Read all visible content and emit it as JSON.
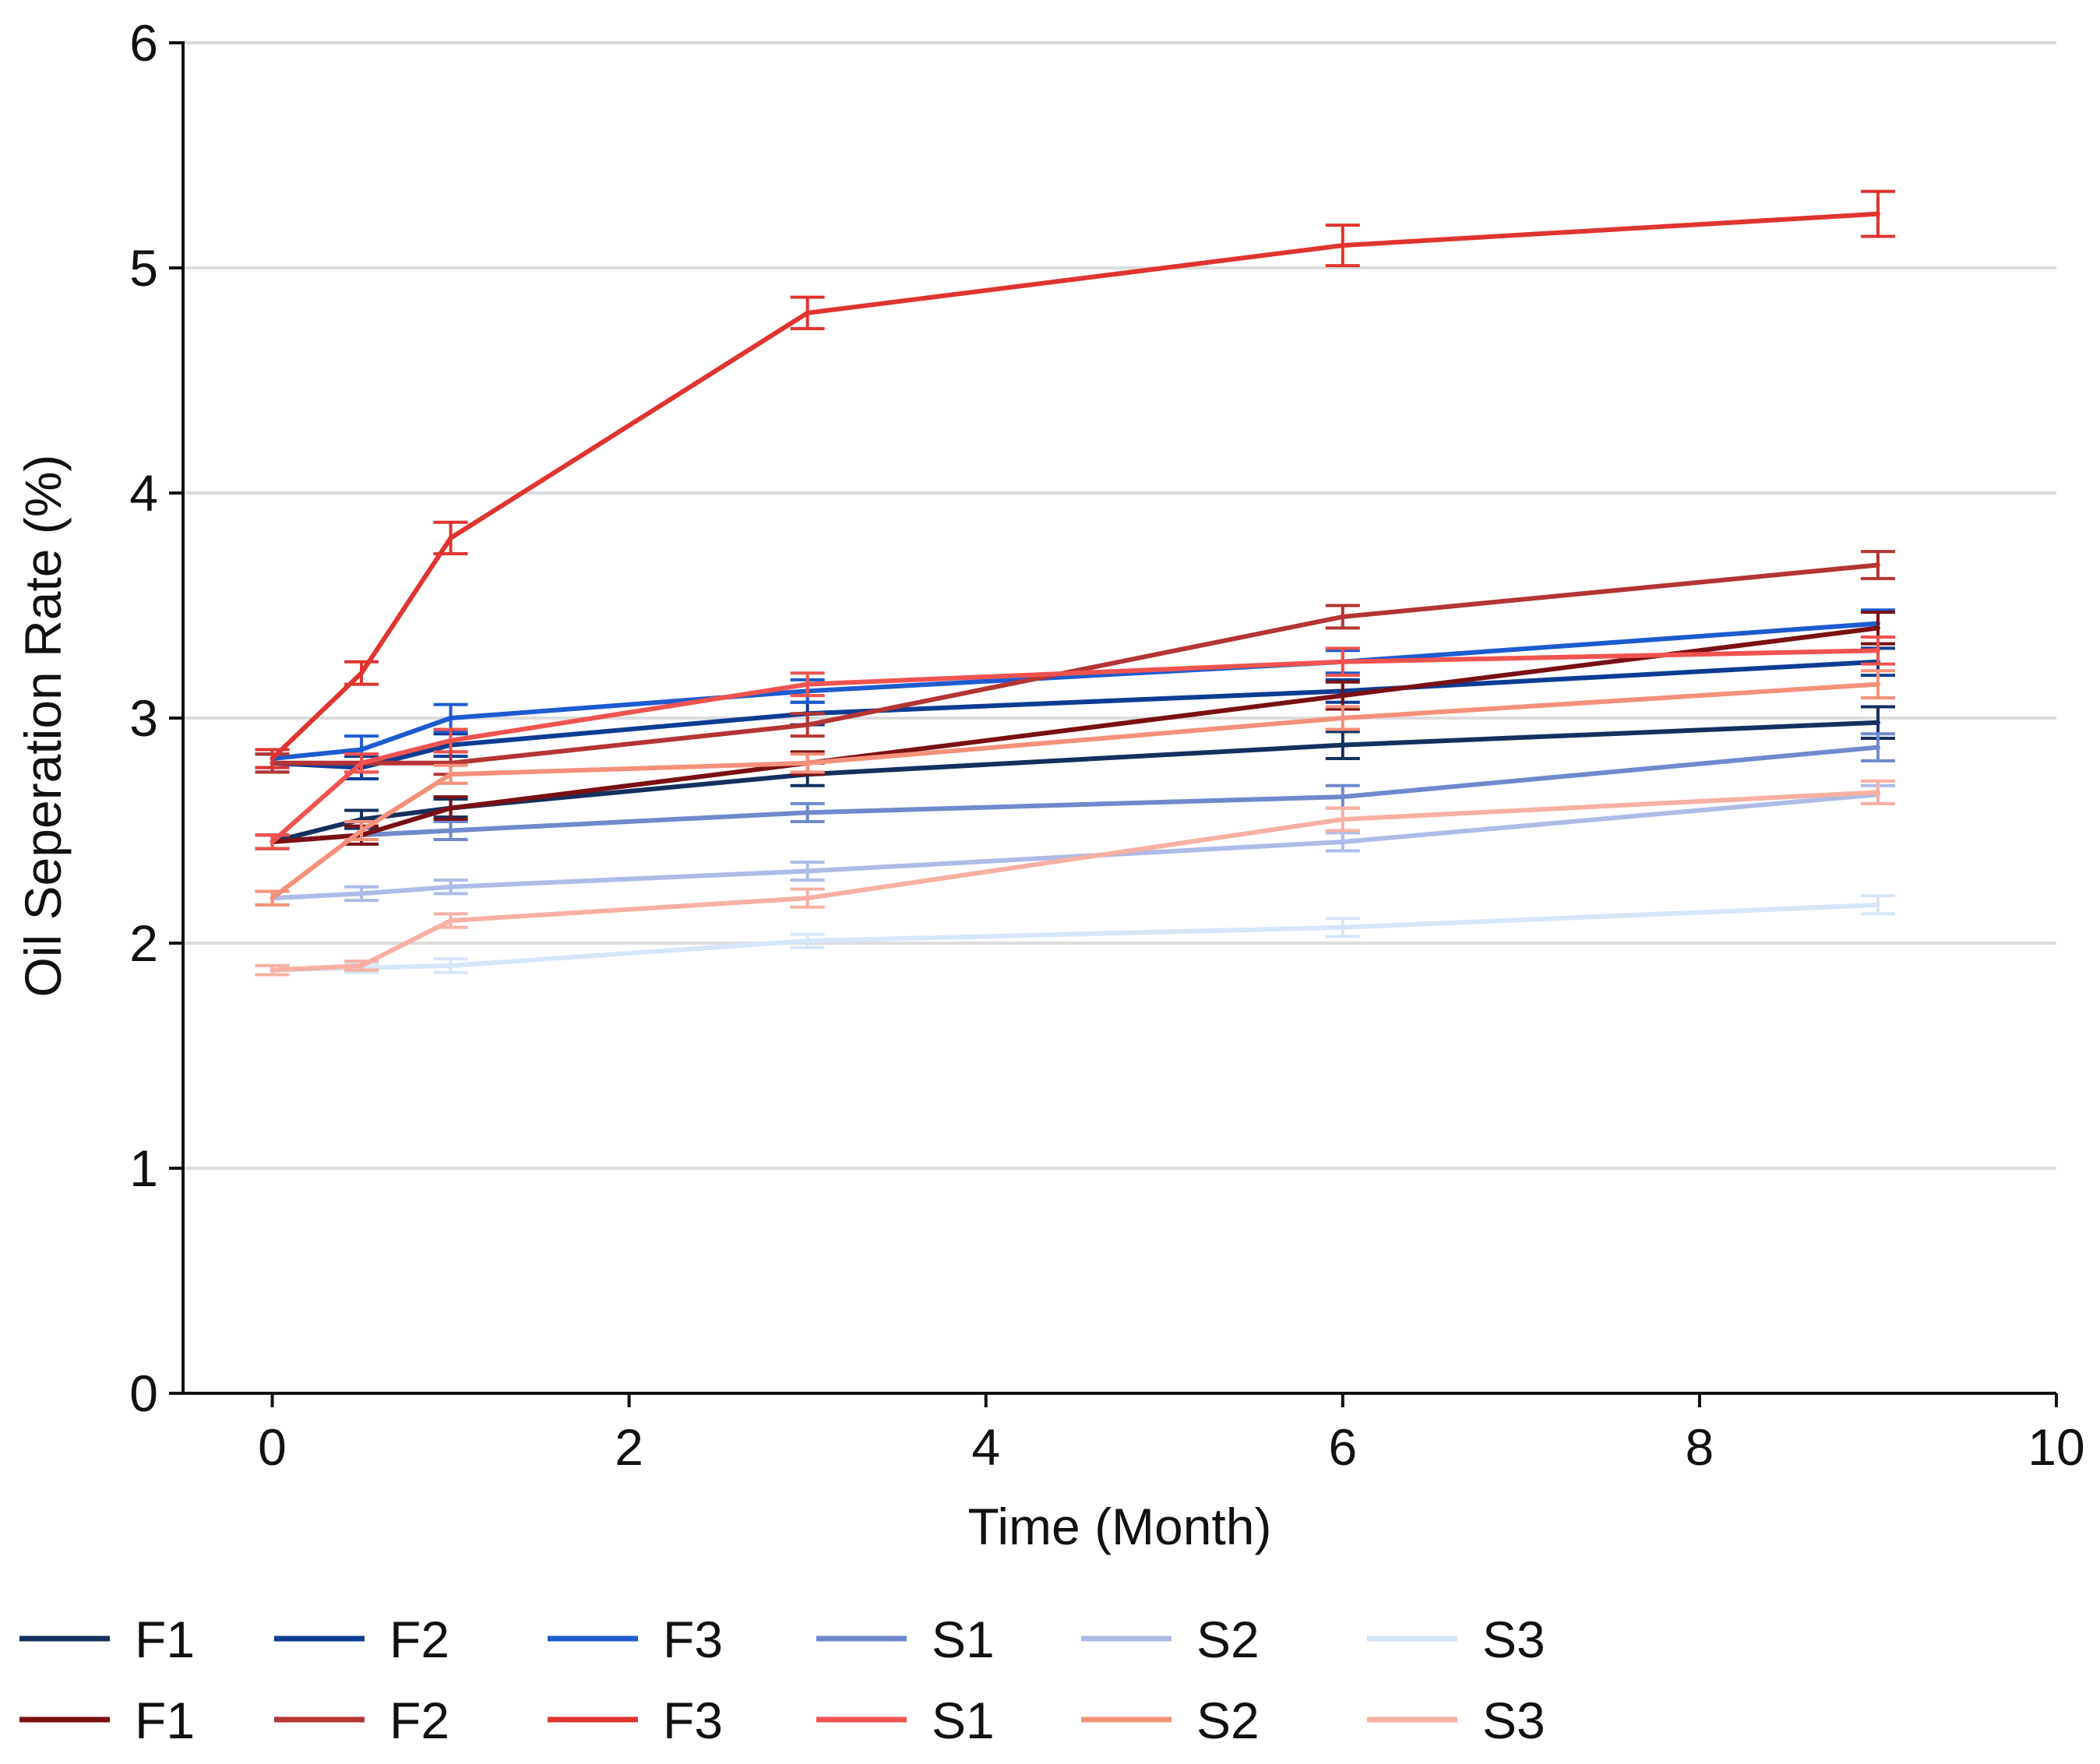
{
  "chart_data": {
    "type": "line",
    "title": "",
    "xlabel": "Time (Month)",
    "ylabel": "Oil Seperation Rate (%)",
    "xlim": [
      -0.5,
      10
    ],
    "ylim": [
      0,
      6
    ],
    "xticks": [
      0,
      2,
      4,
      6,
      8,
      10
    ],
    "yticks": [
      0,
      1,
      2,
      3,
      4,
      5,
      6
    ],
    "grid": "horizontal",
    "legend_position": "bottom",
    "x": [
      0,
      0.5,
      1,
      3,
      6,
      9
    ],
    "series": [
      {
        "name": "F1",
        "color": "#14305e",
        "values": [
          2.45,
          2.55,
          2.6,
          2.75,
          2.88,
          2.98
        ],
        "errors": [
          0.03,
          0.04,
          0.04,
          0.05,
          0.06,
          0.07
        ]
      },
      {
        "name": "F2",
        "color": "#0d3d92",
        "values": [
          2.8,
          2.78,
          2.88,
          3.02,
          3.12,
          3.25
        ],
        "errors": [
          0.04,
          0.05,
          0.05,
          0.05,
          0.05,
          0.06
        ]
      },
      {
        "name": "F3",
        "color": "#1d5bd0",
        "values": [
          2.82,
          2.86,
          3.0,
          3.12,
          3.25,
          3.42
        ],
        "errors": [
          0.04,
          0.06,
          0.06,
          0.05,
          0.05,
          0.06
        ]
      },
      {
        "name": "S1",
        "color": "#7089cd",
        "values": [
          2.45,
          2.48,
          2.5,
          2.58,
          2.65,
          2.87
        ],
        "errors": [
          0.03,
          0.04,
          0.04,
          0.04,
          0.05,
          0.06
        ]
      },
      {
        "name": "S2",
        "color": "#aebbe8",
        "values": [
          2.2,
          2.22,
          2.25,
          2.32,
          2.45,
          2.66
        ],
        "errors": [
          0.03,
          0.03,
          0.03,
          0.04,
          0.04,
          0.04
        ]
      },
      {
        "name": "S3",
        "color": "#d7e6f8",
        "values": [
          1.88,
          1.89,
          1.9,
          2.01,
          2.07,
          2.17
        ],
        "errors": [
          0.02,
          0.02,
          0.03,
          0.03,
          0.04,
          0.04
        ]
      },
      {
        "name": "F1",
        "color": "#7a1014",
        "values": [
          2.45,
          2.48,
          2.6,
          2.8,
          3.1,
          3.4
        ],
        "errors": [
          0.03,
          0.04,
          0.05,
          0.05,
          0.06,
          0.07
        ]
      },
      {
        "name": "F2",
        "color": "#b53434",
        "values": [
          2.8,
          2.8,
          2.8,
          2.97,
          3.45,
          3.68
        ],
        "errors": [
          0.04,
          0.04,
          0.05,
          0.05,
          0.05,
          0.06
        ]
      },
      {
        "name": "F3",
        "color": "#e03430",
        "values": [
          2.82,
          3.2,
          3.8,
          4.8,
          5.1,
          5.24
        ],
        "errors": [
          0.04,
          0.05,
          0.07,
          0.07,
          0.09,
          0.1
        ]
      },
      {
        "name": "S1",
        "color": "#ef5350",
        "values": [
          2.45,
          2.8,
          2.9,
          3.15,
          3.25,
          3.3
        ],
        "errors": [
          0.03,
          0.04,
          0.05,
          0.05,
          0.06,
          0.06
        ]
      },
      {
        "name": "S2",
        "color": "#f5907a",
        "values": [
          2.2,
          2.5,
          2.75,
          2.8,
          3.0,
          3.15
        ],
        "errors": [
          0.03,
          0.04,
          0.04,
          0.04,
          0.05,
          0.06
        ]
      },
      {
        "name": "S3",
        "color": "#f7b0a3",
        "values": [
          1.88,
          1.9,
          2.1,
          2.2,
          2.55,
          2.67
        ],
        "errors": [
          0.02,
          0.02,
          0.03,
          0.04,
          0.05,
          0.05
        ]
      }
    ]
  }
}
